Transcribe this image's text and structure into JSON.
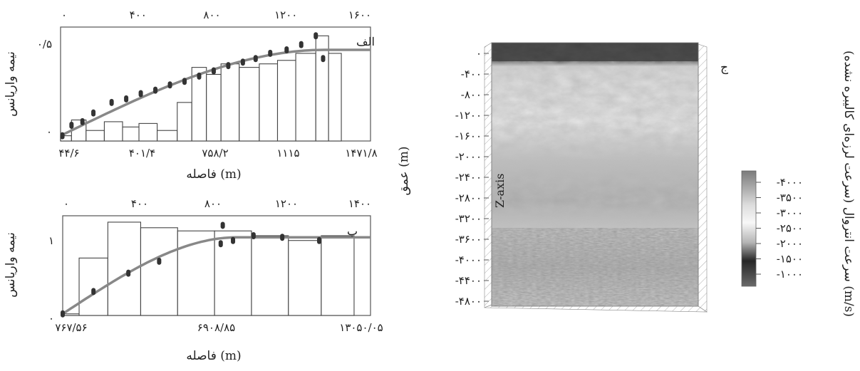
{
  "panel_top": {
    "letter": "الف",
    "ylabel": "نیمه واریانس",
    "xlabel": "فاصله (m)",
    "top_ticks": [
      "۰",
      "۴۰۰",
      "۸۰۰",
      "۱۲۰۰",
      "۱۶۰۰"
    ],
    "bottom_ticks": [
      "۴۴/۶",
      "۴۰۱/۴",
      "۷۵۸/۲",
      "۱۱۱۵",
      "۱۴۷۱/۸"
    ],
    "y_ticks": [
      "۰/۵",
      "۰"
    ]
  },
  "panel_bottom": {
    "letter": "ب",
    "ylabel": "نیمه واریانس",
    "xlabel": "فاصله (m)",
    "top_ticks": [
      "۰",
      "۴۰۰",
      "۸۰۰",
      "۱۲۰۰",
      "۱۴۰۰"
    ],
    "bottom_ticks": [
      "۷۶۷/۵۶",
      "۶۹۰۸/۸۵",
      "۱۳۰۵۰/۰۵"
    ],
    "y_ticks": [
      "۱",
      "۰"
    ]
  },
  "panel_c": {
    "letter": "ج",
    "ylabel": "عمق (m)",
    "axis_name": "Z-axis",
    "depth_ticks": [
      "۰",
      "-۴۰۰",
      "-۸۰۰",
      "-۱۲۰۰",
      "-۱۶۰۰",
      "-۲۰۰۰",
      "-۲۴۰۰",
      "-۲۸۰۰",
      "-۳۲۰۰",
      "-۳۶۰۰",
      "-۴۰۰۰",
      "-۴۴۰۰",
      "-۴۸۰۰"
    ],
    "colorbar_ticks": [
      "-۴۰۰۰",
      "-۳۵۰۰",
      "-۳۰۰۰",
      "-۲۵۰۰",
      "-۲۰۰۰",
      "-۱۵۰۰",
      "-۱۰۰۰"
    ],
    "colorbar_label": "سرعت انتروال (سرعت لرزه‌ای کالیبره نشده) (m/s)"
  },
  "chart_data": [
    {
      "type": "bar",
      "name_ref": "panel_top",
      "x_range": [
        0,
        1700
      ],
      "ylim": [
        0,
        0.65
      ],
      "bars": [
        {
          "x0": 0,
          "x1": 60,
          "h": 0.03
        },
        {
          "x0": 60,
          "x1": 140,
          "h": 0.12
        },
        {
          "x0": 140,
          "x1": 240,
          "h": 0.06
        },
        {
          "x0": 240,
          "x1": 340,
          "h": 0.11
        },
        {
          "x0": 340,
          "x1": 430,
          "h": 0.08
        },
        {
          "x0": 430,
          "x1": 530,
          "h": 0.1
        },
        {
          "x0": 530,
          "x1": 640,
          "h": 0.06
        },
        {
          "x0": 640,
          "x1": 720,
          "h": 0.22
        },
        {
          "x0": 720,
          "x1": 800,
          "h": 0.42
        },
        {
          "x0": 800,
          "x1": 880,
          "h": 0.38
        },
        {
          "x0": 880,
          "x1": 980,
          "h": 0.44
        },
        {
          "x0": 980,
          "x1": 1090,
          "h": 0.42
        },
        {
          "x0": 1090,
          "x1": 1190,
          "h": 0.44
        },
        {
          "x0": 1190,
          "x1": 1290,
          "h": 0.46
        },
        {
          "x0": 1290,
          "x1": 1400,
          "h": 0.5
        },
        {
          "x0": 1400,
          "x1": 1470,
          "h": 0.6
        },
        {
          "x0": 1470,
          "x1": 1540,
          "h": 0.5
        }
      ],
      "points": [
        [
          10,
          0.03
        ],
        [
          60,
          0.09
        ],
        [
          120,
          0.11
        ],
        [
          180,
          0.16
        ],
        [
          280,
          0.22
        ],
        [
          360,
          0.24
        ],
        [
          440,
          0.27
        ],
        [
          520,
          0.29
        ],
        [
          600,
          0.32
        ],
        [
          680,
          0.34
        ],
        [
          760,
          0.37
        ],
        [
          840,
          0.4
        ],
        [
          920,
          0.43
        ],
        [
          1000,
          0.45
        ],
        [
          1070,
          0.47
        ],
        [
          1150,
          0.5
        ],
        [
          1240,
          0.52
        ],
        [
          1320,
          0.55
        ],
        [
          1400,
          0.6
        ],
        [
          1440,
          0.47
        ]
      ],
      "model": {
        "type": "spherical",
        "nugget": 0.03,
        "sill": 0.52,
        "range": 1450
      }
    },
    {
      "type": "bar",
      "name_ref": "panel_bottom",
      "x_range": [
        0,
        1500
      ],
      "ylim": [
        0,
        1.25
      ],
      "bars": [
        {
          "x0": 0,
          "x1": 80,
          "h": 0.02
        },
        {
          "x0": 80,
          "x1": 220,
          "h": 0.72
        },
        {
          "x0": 220,
          "x1": 380,
          "h": 1.17
        },
        {
          "x0": 380,
          "x1": 560,
          "h": 1.1
        },
        {
          "x0": 560,
          "x1": 740,
          "h": 1.06
        },
        {
          "x0": 740,
          "x1": 920,
          "h": 1.06
        },
        {
          "x0": 920,
          "x1": 1100,
          "h": 1.0
        },
        {
          "x0": 1100,
          "x1": 1260,
          "h": 0.94
        },
        {
          "x0": 1260,
          "x1": 1420,
          "h": 1.0
        }
      ],
      "points": [
        [
          0,
          0.02
        ],
        [
          150,
          0.3
        ],
        [
          320,
          0.53
        ],
        [
          470,
          0.68
        ],
        [
          770,
          0.9
        ],
        [
          780,
          1.13
        ],
        [
          830,
          0.94
        ],
        [
          930,
          1.0
        ],
        [
          1070,
          0.98
        ],
        [
          1250,
          0.94
        ]
      ],
      "model": {
        "type": "spherical",
        "nugget": 0.02,
        "sill": 0.98,
        "range": 850
      }
    },
    {
      "type": "heatmap",
      "name_ref": "panel_c",
      "depth_range": [
        0,
        -4800
      ],
      "color_range": [
        -1000,
        -4000
      ],
      "palette": [
        "#606060",
        "#262626",
        "#f3f3f3",
        "#dedede",
        "#a5a5a5",
        "#7b7b7b",
        "#9b9b9b"
      ]
    }
  ]
}
